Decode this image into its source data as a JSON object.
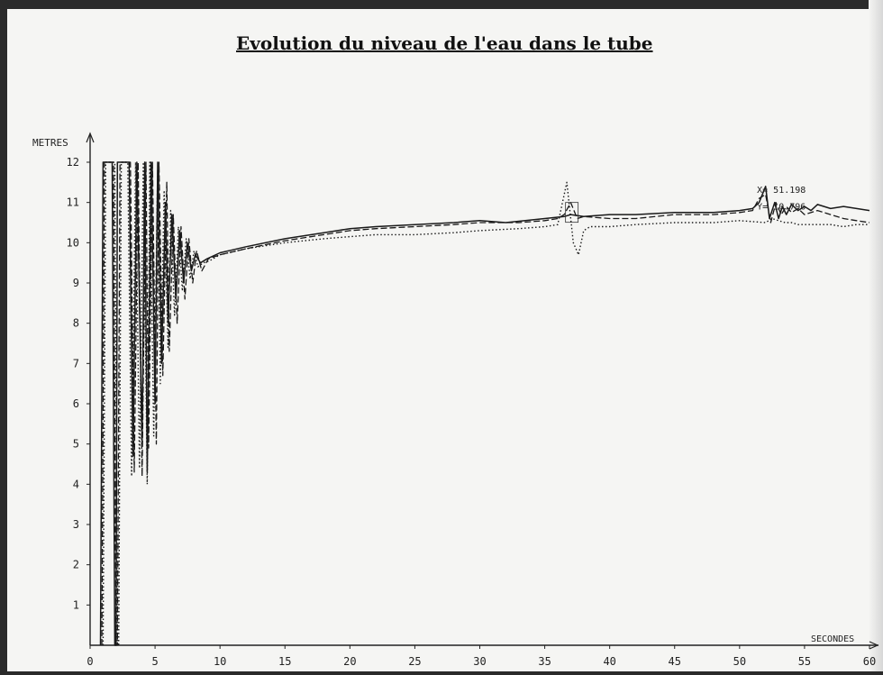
{
  "chart_data": {
    "type": "line",
    "title": "Evolution du niveau de l'eau dans le tube",
    "xlabel": "SECONDES",
    "ylabel": "METRES",
    "xlim": [
      0,
      60
    ],
    "ylim": [
      0,
      12
    ],
    "x_ticks": [
      0,
      5,
      10,
      15,
      20,
      25,
      30,
      35,
      40,
      45,
      50,
      55,
      60
    ],
    "y_ticks": [
      1,
      2,
      3,
      4,
      5,
      6,
      7,
      8,
      9,
      10,
      11,
      12
    ],
    "grid": false,
    "series": [
      {
        "style": "solid",
        "x": [
          0.8,
          1.0,
          1.1,
          1.3,
          1.7,
          1.9,
          2.0,
          2.1,
          2.3,
          2.5,
          2.7,
          3.0,
          3.3,
          3.6,
          4.0,
          4.2,
          4.4,
          4.7,
          5.0,
          5.2,
          5.5,
          5.8,
          6.0,
          6.3,
          6.6,
          6.9,
          7.2,
          7.5,
          7.8,
          8.1,
          8.5,
          9.0,
          10,
          12,
          15,
          18,
          20,
          22,
          25,
          28,
          30,
          32,
          35,
          36.5,
          37,
          38,
          40,
          42,
          45,
          48,
          50,
          51,
          51.5,
          52,
          52.3,
          52.7,
          53,
          53.3,
          53.6,
          54,
          54.5,
          55,
          55.5,
          56,
          57,
          58,
          59,
          60
        ],
        "y": [
          0,
          12,
          12,
          12,
          12,
          0,
          0,
          12,
          12,
          12,
          12,
          12,
          4.7,
          12,
          5.0,
          12,
          4.3,
          12,
          6.0,
          12,
          7.0,
          11.0,
          8.0,
          10.7,
          8.6,
          10.3,
          9.0,
          10.0,
          9.3,
          9.7,
          9.5,
          9.6,
          9.75,
          9.9,
          10.1,
          10.25,
          10.35,
          10.4,
          10.45,
          10.5,
          10.55,
          10.5,
          10.6,
          10.65,
          10.7,
          10.65,
          10.7,
          10.7,
          10.75,
          10.75,
          10.8,
          10.85,
          11.0,
          11.4,
          10.6,
          11.0,
          10.6,
          10.9,
          10.7,
          10.95,
          10.8,
          10.9,
          10.8,
          10.95,
          10.85,
          10.9,
          10.85,
          10.8
        ]
      },
      {
        "style": "dashed",
        "x": [
          0.9,
          1.1,
          1.2,
          1.4,
          1.8,
          2.0,
          2.1,
          2.3,
          2.5,
          2.8,
          3.1,
          3.4,
          3.7,
          4.0,
          4.3,
          4.5,
          4.8,
          5.1,
          5.3,
          5.6,
          5.9,
          6.1,
          6.4,
          6.7,
          7.0,
          7.3,
          7.6,
          7.9,
          8.2,
          8.6,
          9.1,
          10,
          12,
          15,
          18,
          20,
          22,
          25,
          28,
          30,
          33,
          35,
          36,
          36.5,
          37,
          37.5,
          38,
          40,
          42,
          45,
          48,
          50,
          51,
          51.5,
          52,
          52.4,
          52.8,
          53.2,
          53.6,
          54,
          54.5,
          55,
          56,
          57,
          58,
          59,
          60
        ],
        "y": [
          0,
          12,
          12,
          12,
          12,
          0,
          0,
          12,
          12,
          12,
          12,
          4.3,
          12,
          4.2,
          12,
          4.9,
          12,
          5.0,
          12,
          6.7,
          11.5,
          7.3,
          10.7,
          8.0,
          10.4,
          8.6,
          10.1,
          9.0,
          9.8,
          9.3,
          9.6,
          9.7,
          9.85,
          10.05,
          10.2,
          10.3,
          10.35,
          10.4,
          10.45,
          10.5,
          10.5,
          10.55,
          10.6,
          10.7,
          11.0,
          10.6,
          10.65,
          10.6,
          10.6,
          10.7,
          10.7,
          10.75,
          10.8,
          11.1,
          11.2,
          10.5,
          11.0,
          10.7,
          10.9,
          10.75,
          10.85,
          10.7,
          10.8,
          10.7,
          10.6,
          10.55,
          10.5
        ]
      },
      {
        "style": "dotted",
        "x": [
          1.0,
          1.2,
          1.3,
          1.5,
          1.9,
          2.1,
          2.2,
          2.4,
          2.6,
          2.9,
          3.2,
          3.5,
          3.8,
          4.1,
          4.4,
          4.6,
          4.9,
          5.2,
          5.4,
          5.7,
          6.0,
          6.2,
          6.5,
          6.8,
          7.1,
          7.4,
          7.7,
          8.0,
          8.3,
          8.7,
          9.2,
          10,
          12,
          15,
          18,
          20,
          22,
          25,
          28,
          30,
          33,
          35,
          36,
          36.7,
          37.2,
          37.6,
          38,
          38.5,
          40,
          42,
          45,
          48,
          50,
          52,
          52.5,
          53,
          53.5,
          54,
          54.5,
          55,
          56,
          57,
          58,
          59,
          60
        ],
        "y": [
          0,
          12,
          12,
          12,
          12,
          0,
          0,
          12,
          12,
          12,
          4.2,
          12,
          4.4,
          12,
          4.0,
          12,
          5.2,
          11.8,
          6.5,
          11.3,
          7.4,
          10.8,
          8.2,
          10.4,
          8.8,
          10.1,
          9.1,
          9.8,
          9.4,
          9.5,
          9.55,
          9.7,
          9.85,
          10.0,
          10.1,
          10.15,
          10.2,
          10.2,
          10.25,
          10.3,
          10.35,
          10.4,
          10.45,
          11.5,
          10.0,
          9.7,
          10.3,
          10.4,
          10.4,
          10.45,
          10.5,
          10.5,
          10.55,
          10.5,
          10.6,
          10.55,
          10.5,
          10.5,
          10.45,
          10.45,
          10.45,
          10.45,
          10.4,
          10.45,
          10.45
        ]
      }
    ],
    "annotations": [
      {
        "text": "X= 51.198",
        "x": 51.2,
        "y": 11.1
      },
      {
        "text": "Y= 10.796",
        "x": 51.2,
        "y": 10.8
      }
    ],
    "tick_labels_x": [
      "0",
      "5",
      "10",
      "15",
      "20",
      "25",
      "30",
      "35",
      "40",
      "45",
      "50",
      "55",
      "60"
    ],
    "tick_labels_y": [
      "1",
      "2",
      "3",
      "4",
      "5",
      "6",
      "7",
      "8",
      "9",
      "10",
      "11",
      "12"
    ]
  }
}
